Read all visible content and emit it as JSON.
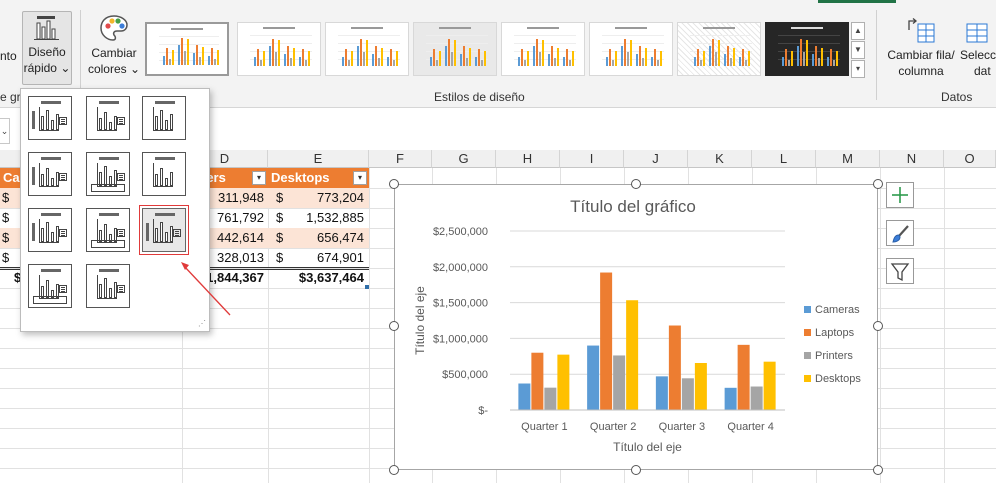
{
  "ribbon": {
    "partial_button_label": "nto",
    "quick_layout_label_line1": "Diseño",
    "quick_layout_label_line2": "rápido",
    "quick_layout_chevron": "⌄",
    "change_colors_line1": "Cambiar",
    "change_colors_line2": "colores",
    "change_colors_chevron": "⌄",
    "partial_group_label": "e grá",
    "styles_group_label": "Estilos de diseño",
    "style_thumb_title": "Título del gráfico",
    "switch_row_col_line1": "Cambiar fila/",
    "switch_row_col_line2": "columna",
    "select_data_line1": "Selecc",
    "select_data_line2": "dat",
    "data_group_label": "Datos",
    "gallery_up": "▲",
    "gallery_down": "▼",
    "gallery_more": "▾",
    "icons": [
      "quick-layout-icon",
      "palette-icon",
      "switch-row-column-icon",
      "select-data-icon"
    ]
  },
  "formula_bar": {
    "name_box_chevron": "⌄"
  },
  "sheet": {
    "columns": [
      "D",
      "E",
      "F",
      "G",
      "H",
      "I",
      "J",
      "K",
      "L",
      "M",
      "N",
      "O"
    ],
    "header_row": {
      "a_partial": "Cam",
      "d_partial": "ters",
      "e": "Desktops",
      "filter_arrow": "▾"
    },
    "rows": [
      {
        "a": "$",
        "d": "311,948",
        "e_sign": "$",
        "e": "773,204"
      },
      {
        "a": "$",
        "d": "761,792",
        "e_sign": "$",
        "e": "1,532,885"
      },
      {
        "a": "$",
        "d": "442,614",
        "e_sign": "$",
        "e": "656,474"
      },
      {
        "a": "$",
        "d": "328,013",
        "e_sign": "$",
        "e": "674,901"
      }
    ],
    "totals": {
      "a": "$",
      "d": "1,844,367",
      "e": "$3,637,464"
    }
  },
  "chart_data": {
    "type": "bar",
    "title": "Título del gráfico",
    "xlabel": "Título del eje",
    "ylabel": "Título del eje",
    "categories": [
      "Quarter 1",
      "Quarter 2",
      "Quarter 3",
      "Quarter 4"
    ],
    "ylim": [
      0,
      2500000
    ],
    "yticks": [
      0,
      500000,
      1000000,
      1500000,
      2000000,
      2500000
    ],
    "ytick_labels": [
      "$-",
      "$500,000",
      "$1,000,000",
      "$1,500,000",
      "$2,000,000",
      "$2,500,000"
    ],
    "grid": true,
    "legend_position": "right",
    "series": [
      {
        "name": "Cameras",
        "color": "#5b9bd5",
        "values": [
          370000,
          900000,
          470000,
          310000
        ]
      },
      {
        "name": "Laptops",
        "color": "#ed7d31",
        "values": [
          800000,
          1920000,
          1180000,
          910000
        ]
      },
      {
        "name": "Printers",
        "color": "#a5a5a5",
        "values": [
          311948,
          761792,
          442614,
          328013
        ]
      },
      {
        "name": "Desktops",
        "color": "#ffc000",
        "values": [
          773204,
          1532885,
          656474,
          674901
        ]
      }
    ]
  },
  "chart_side_buttons": [
    "chart-elements-icon",
    "chart-styles-icon",
    "chart-filter-icon"
  ],
  "quick_layout_menu": {
    "hovered_index": 8,
    "grip": "⋰"
  }
}
